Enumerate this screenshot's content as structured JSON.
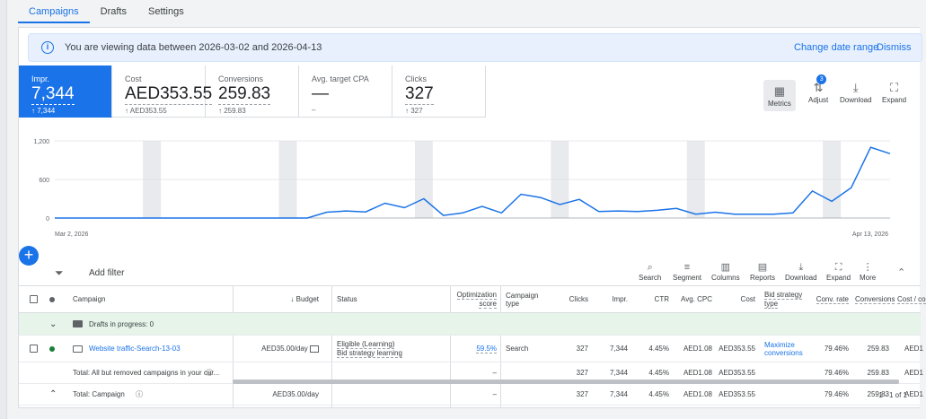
{
  "tabs": [
    {
      "label": "Campaigns",
      "active": true
    },
    {
      "label": "Drafts",
      "active": false
    },
    {
      "label": "Settings",
      "active": false
    }
  ],
  "info_bar": {
    "text": "You are viewing data between 2026-03-02 and 2026-04-13",
    "change_label": "Change date range",
    "dismiss_label": "Dismiss"
  },
  "scorecards": [
    {
      "label": "Impr.",
      "value": "7,344",
      "sub": "↑ 7,344",
      "selected": true
    },
    {
      "label": "Cost",
      "value": "AED353.55",
      "sub": "↑ AED353.55",
      "selected": false
    },
    {
      "label": "Conversions",
      "value": "259.83",
      "sub": "↑ 259.83",
      "selected": false
    },
    {
      "label": "Avg. target CPA",
      "value": "—",
      "sub": "–",
      "selected": false
    },
    {
      "label": "Clicks",
      "value": "327",
      "sub": "↑ 327",
      "selected": false
    }
  ],
  "chart_toolbar": {
    "metrics": "Metrics",
    "adjust": "Adjust",
    "adjust_badge": "3",
    "download": "Download",
    "expand": "Expand"
  },
  "chart_data": {
    "type": "line",
    "y_ticks": [
      "1,200",
      "600",
      "0"
    ],
    "ylim": [
      0,
      1200
    ],
    "x_start_label": "Mar 2, 2026",
    "x_end_label": "Apr 13, 2026",
    "color": "#1a73e8",
    "series": [
      {
        "values": [
          0,
          0,
          0,
          0,
          0,
          0,
          0,
          0,
          0,
          0,
          0,
          0,
          0,
          0,
          90,
          110,
          95,
          230,
          160,
          300,
          40,
          80,
          180,
          80,
          370,
          320,
          210,
          290,
          100,
          110,
          100,
          120,
          150,
          60,
          90,
          60,
          60,
          60,
          80,
          420,
          260,
          470,
          1100,
          1000
        ]
      }
    ]
  },
  "table_toolbar": {
    "add_filter": "Add filter",
    "search": "Search",
    "segment": "Segment",
    "columns": "Columns",
    "reports": "Reports",
    "download": "Download",
    "expand": "Expand",
    "more": "More"
  },
  "columns": {
    "campaign": "Campaign",
    "budget": "Budget",
    "status": "Status",
    "opt_score_1": "Optimization",
    "opt_score_2": "score",
    "camp_type_1": "Campaign",
    "camp_type_2": "type",
    "clicks": "Clicks",
    "impr": "Impr.",
    "ctr": "CTR",
    "avg_cpc": "Avg. CPC",
    "cost": "Cost",
    "bid_1": "Bid strategy",
    "bid_2": "type",
    "conv_rate": "Conv. rate",
    "conversions": "Conversions",
    "cost_conv": "Cost / co"
  },
  "drafts_row": {
    "label": "Drafts in progress: 0"
  },
  "campaign_row": {
    "name": "Website traffic-Search-13-03",
    "budget": "AED35.00/day",
    "status_1": "Eligible (Learning)",
    "status_2": "Bid strategy learning",
    "opt_score": "59.5%",
    "type": "Search",
    "clicks": "327",
    "impr": "7,344",
    "ctr": "4.45%",
    "avg_cpc": "AED1.08",
    "cost": "AED353.55",
    "bid_1": "Maximize",
    "bid_2": "conversions",
    "conv_rate": "79.46%",
    "conversions": "259.83",
    "cost_conv": "AED1"
  },
  "total_all_row": {
    "label": "Total: All but removed campaigns in your cur...",
    "opt_score": "–",
    "clicks": "327",
    "impr": "7,344",
    "ctr": "4.45%",
    "avg_cpc": "AED1.08",
    "cost": "AED353.55",
    "conv_rate": "79.46%",
    "conversions": "259.83",
    "cost_conv": "AED1"
  },
  "total_campaign_row": {
    "label": "Total: Campaign",
    "budget": "AED35.00/day",
    "opt_score": "–",
    "clicks": "327",
    "impr": "7,344",
    "ctr": "4.45%",
    "avg_cpc": "AED1.08",
    "cost": "AED353.55",
    "conv_rate": "79.46%",
    "conversions": "259.83",
    "cost_conv": "AED1"
  },
  "pagination": "1 - 1 of 1"
}
